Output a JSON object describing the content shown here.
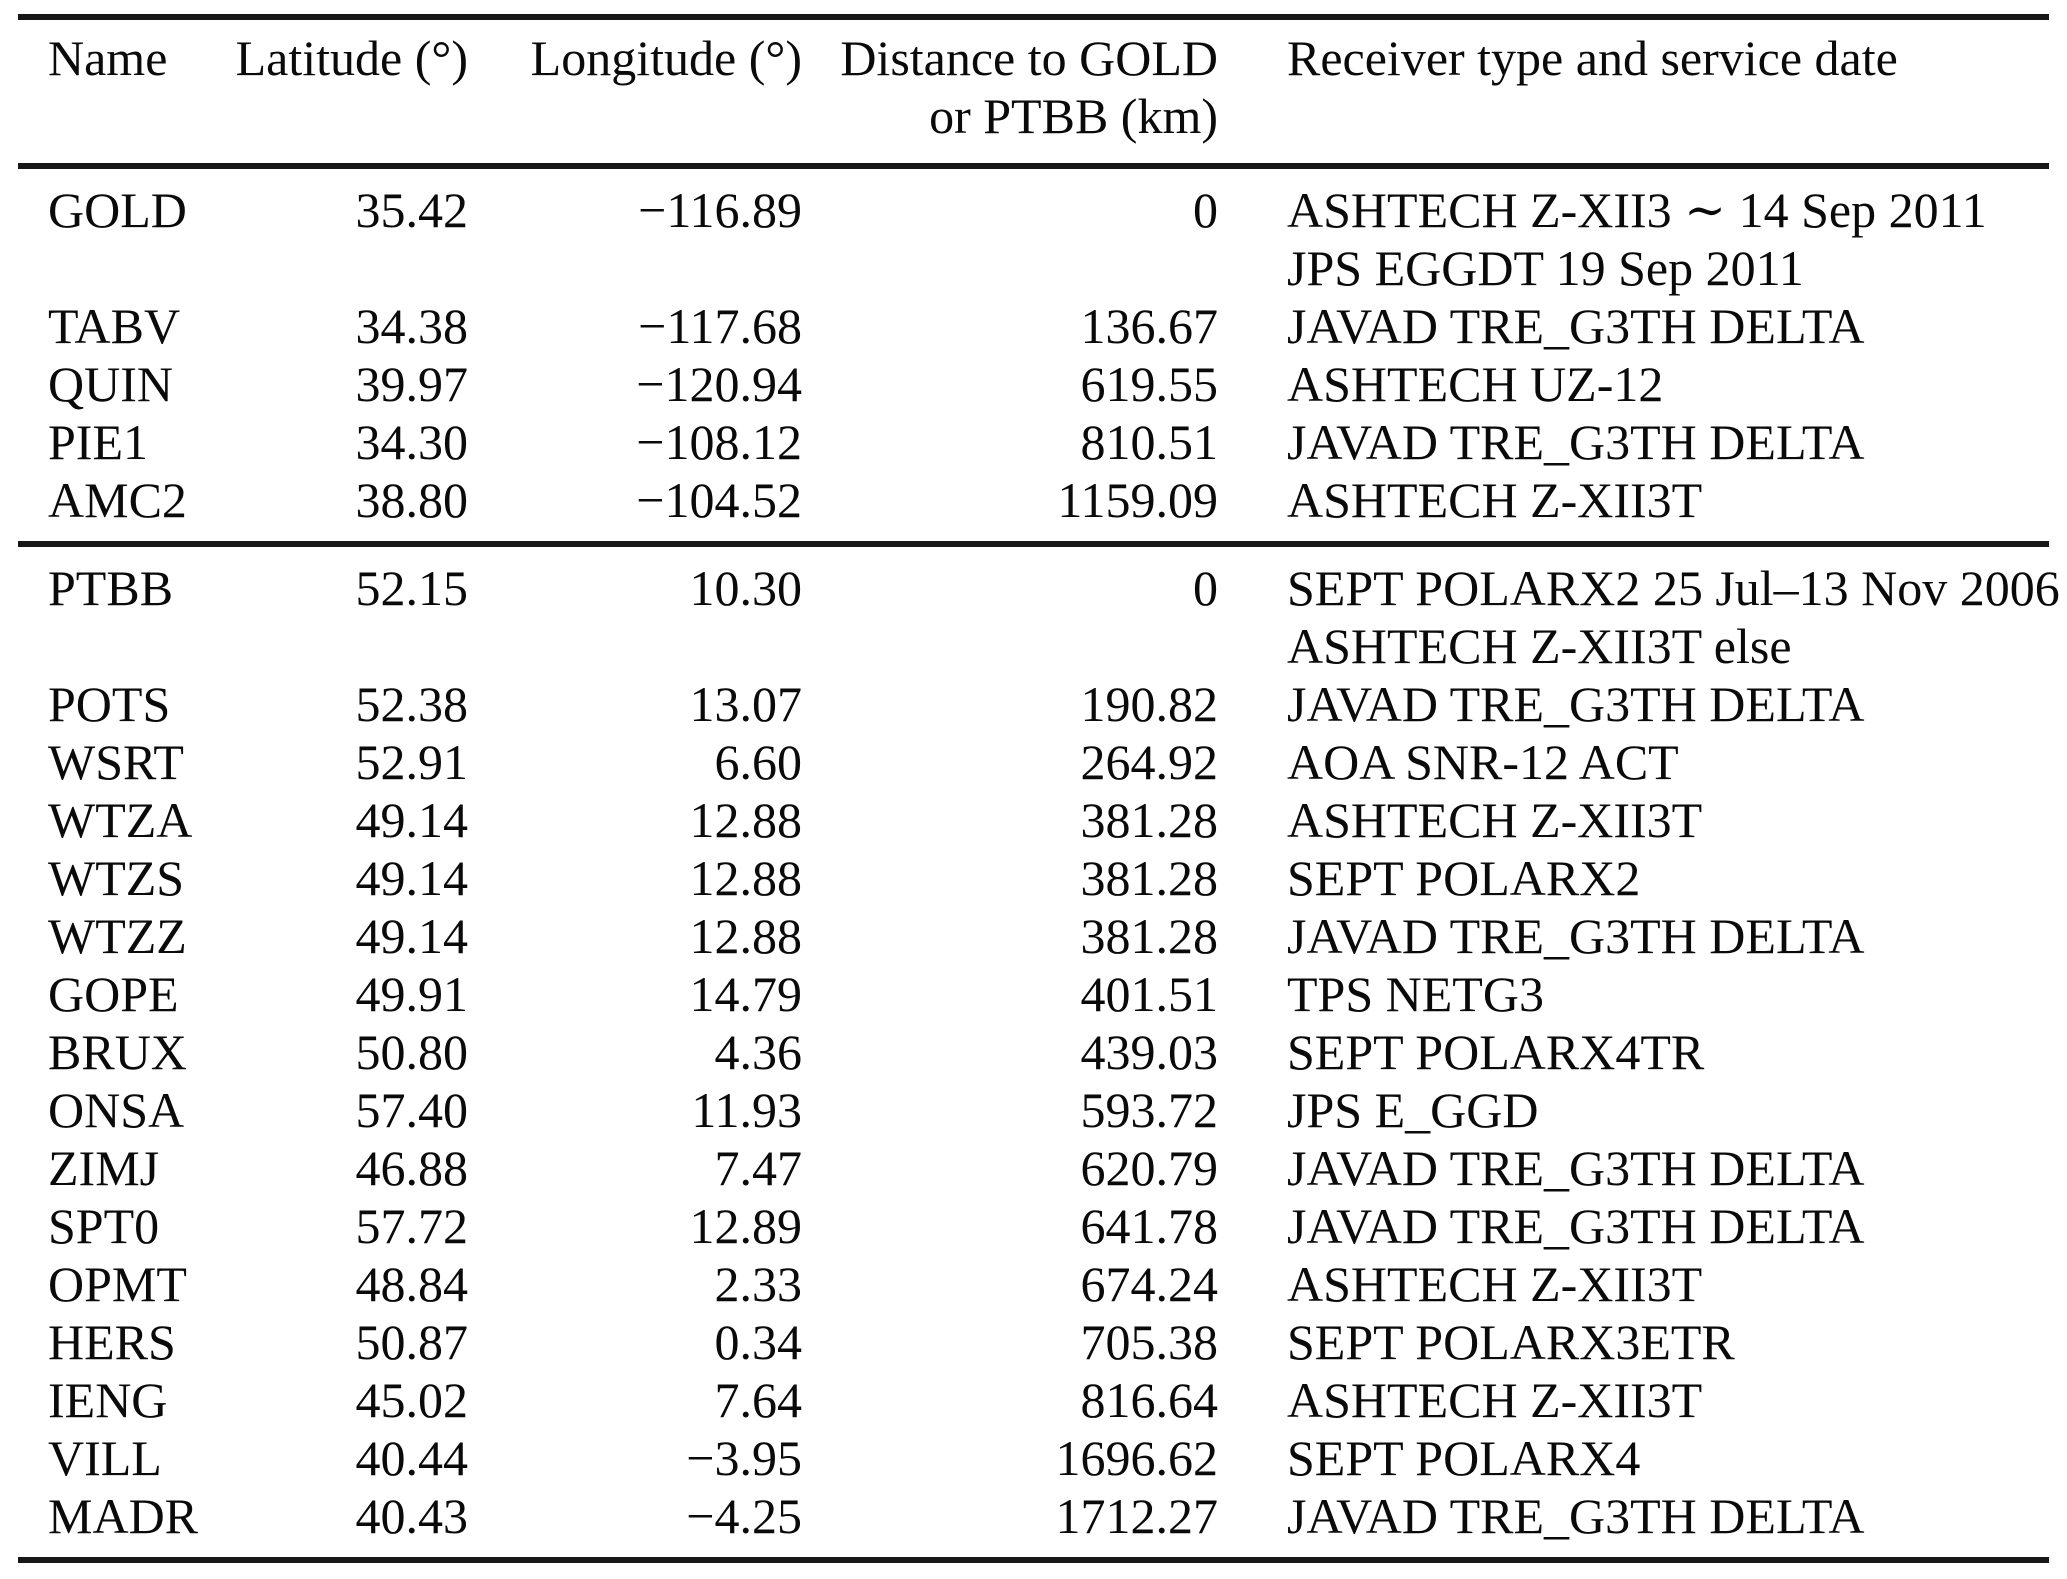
{
  "page": {
    "background_color": "#ffffff",
    "text_color": "#0a0a0a",
    "rule_color": "#171717"
  },
  "table": {
    "columns": [
      {
        "label": "Name",
        "align": "left"
      },
      {
        "label": "Latitude (°)",
        "align": "right"
      },
      {
        "label": "Longitude (°)",
        "align": "right"
      },
      {
        "label_line1": "Distance to GOLD",
        "label_line2": "or PTBB (km)",
        "align": "right"
      },
      {
        "label": "Receiver type and service date",
        "align": "left"
      }
    ],
    "groups": [
      {
        "rows": [
          {
            "name": "GOLD",
            "lat": "35.42",
            "lon": "−116.89",
            "dist": "0",
            "receiver": [
              "ASHTECH Z-XII3 ∼ 14 Sep 2011",
              "JPS EGGDT 19 Sep 2011"
            ]
          },
          {
            "name": "TABV",
            "lat": "34.38",
            "lon": "−117.68",
            "dist": "136.67",
            "receiver": [
              "JAVAD TRE_G3TH DELTA"
            ]
          },
          {
            "name": "QUIN",
            "lat": "39.97",
            "lon": "−120.94",
            "dist": "619.55",
            "receiver": [
              "ASHTECH UZ-12"
            ]
          },
          {
            "name": "PIE1",
            "lat": "34.30",
            "lon": "−108.12",
            "dist": "810.51",
            "receiver": [
              "JAVAD TRE_G3TH DELTA"
            ]
          },
          {
            "name": "AMC2",
            "lat": "38.80",
            "lon": "−104.52",
            "dist": "1159.09",
            "receiver": [
              "ASHTECH Z-XII3T"
            ]
          }
        ]
      },
      {
        "rows": [
          {
            "name": "PTBB",
            "lat": "52.15",
            "lon": "10.30",
            "dist": "0",
            "receiver": [
              "SEPT POLARX2 25 Jul–13 Nov 2006",
              "ASHTECH Z-XII3T else"
            ]
          },
          {
            "name": "POTS",
            "lat": "52.38",
            "lon": "13.07",
            "dist": "190.82",
            "receiver": [
              "JAVAD TRE_G3TH DELTA"
            ]
          },
          {
            "name": "WSRT",
            "lat": "52.91",
            "lon": "6.60",
            "dist": "264.92",
            "receiver": [
              "AOA SNR-12 ACT"
            ]
          },
          {
            "name": "WTZA",
            "lat": "49.14",
            "lon": "12.88",
            "dist": "381.28",
            "receiver": [
              "ASHTECH Z-XII3T"
            ]
          },
          {
            "name": "WTZS",
            "lat": "49.14",
            "lon": "12.88",
            "dist": "381.28",
            "receiver": [
              "SEPT POLARX2"
            ]
          },
          {
            "name": "WTZZ",
            "lat": "49.14",
            "lon": "12.88",
            "dist": "381.28",
            "receiver": [
              "JAVAD TRE_G3TH DELTA"
            ]
          },
          {
            "name": "GOPE",
            "lat": "49.91",
            "lon": "14.79",
            "dist": "401.51",
            "receiver": [
              "TPS NETG3"
            ]
          },
          {
            "name": "BRUX",
            "lat": "50.80",
            "lon": "4.36",
            "dist": "439.03",
            "receiver": [
              "SEPT POLARX4TR"
            ]
          },
          {
            "name": "ONSA",
            "lat": "57.40",
            "lon": "11.93",
            "dist": "593.72",
            "receiver": [
              "JPS E_GGD"
            ]
          },
          {
            "name": "ZIMJ",
            "lat": "46.88",
            "lon": "7.47",
            "dist": "620.79",
            "receiver": [
              "JAVAD TRE_G3TH DELTA"
            ]
          },
          {
            "name": "SPT0",
            "lat": "57.72",
            "lon": "12.89",
            "dist": "641.78",
            "receiver": [
              "JAVAD TRE_G3TH DELTA"
            ]
          },
          {
            "name": "OPMT",
            "lat": "48.84",
            "lon": "2.33",
            "dist": "674.24",
            "receiver": [
              "ASHTECH Z-XII3T"
            ]
          },
          {
            "name": "HERS",
            "lat": "50.87",
            "lon": "0.34",
            "dist": "705.38",
            "receiver": [
              "SEPT POLARX3ETR"
            ]
          },
          {
            "name": "IENG",
            "lat": "45.02",
            "lon": "7.64",
            "dist": "816.64",
            "receiver": [
              "ASHTECH Z-XII3T"
            ]
          },
          {
            "name": "VILL",
            "lat": "40.44",
            "lon": "−3.95",
            "dist": "1696.62",
            "receiver": [
              "SEPT POLARX4"
            ]
          },
          {
            "name": "MADR",
            "lat": "40.43",
            "lon": "−4.25",
            "dist": "1712.27",
            "receiver": [
              "JAVAD TRE_G3TH DELTA"
            ]
          }
        ]
      }
    ]
  }
}
